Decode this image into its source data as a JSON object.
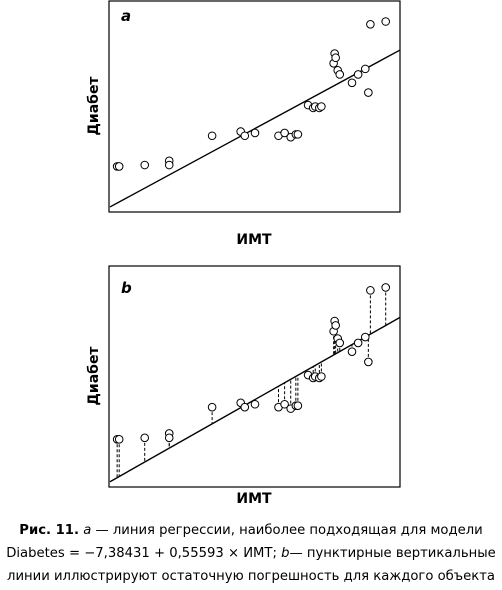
{
  "chart_data": [
    {
      "type": "scatter",
      "panel_label": "a",
      "xlabel": "ИМТ",
      "ylabel": "Диабет",
      "regression_line": true,
      "residual_lines": false,
      "points": [
        {
          "x": 0.3,
          "y": 3.2
        },
        {
          "x": 0.5,
          "y": 3.2
        },
        {
          "x": 3.0,
          "y": 3.3
        },
        {
          "x": 5.4,
          "y": 3.6
        },
        {
          "x": 5.4,
          "y": 3.3
        },
        {
          "x": 9.6,
          "y": 5.4
        },
        {
          "x": 12.4,
          "y": 5.7
        },
        {
          "x": 12.8,
          "y": 5.4
        },
        {
          "x": 13.8,
          "y": 5.6
        },
        {
          "x": 16.1,
          "y": 5.4
        },
        {
          "x": 16.7,
          "y": 5.6
        },
        {
          "x": 17.3,
          "y": 5.3
        },
        {
          "x": 17.8,
          "y": 5.5
        },
        {
          "x": 18.0,
          "y": 5.5
        },
        {
          "x": 19.0,
          "y": 7.6
        },
        {
          "x": 19.5,
          "y": 7.4
        },
        {
          "x": 19.7,
          "y": 7.5
        },
        {
          "x": 20.1,
          "y": 7.4
        },
        {
          "x": 20.3,
          "y": 7.5
        },
        {
          "x": 21.5,
          "y": 10.6
        },
        {
          "x": 21.6,
          "y": 11.3
        },
        {
          "x": 21.7,
          "y": 11.0
        },
        {
          "x": 21.9,
          "y": 10.1
        },
        {
          "x": 22.1,
          "y": 9.8
        },
        {
          "x": 23.3,
          "y": 9.2
        },
        {
          "x": 23.9,
          "y": 9.8
        },
        {
          "x": 24.6,
          "y": 10.2
        },
        {
          "x": 24.9,
          "y": 8.5
        },
        {
          "x": 25.1,
          "y": 13.4
        },
        {
          "x": 26.6,
          "y": 13.6
        }
      ],
      "line": {
        "x1": 0,
        "y1": 0.45,
        "x2": 28,
        "y2": 11.55
      }
    },
    {
      "type": "scatter",
      "panel_label": "b",
      "xlabel": "ИМТ",
      "ylabel": "Диабет",
      "regression_line": true,
      "residual_lines": true,
      "points": [
        {
          "x": 0.3,
          "y": 3.2
        },
        {
          "x": 0.5,
          "y": 3.2
        },
        {
          "x": 3.0,
          "y": 3.3
        },
        {
          "x": 5.4,
          "y": 3.6
        },
        {
          "x": 5.4,
          "y": 3.3
        },
        {
          "x": 9.6,
          "y": 5.4
        },
        {
          "x": 12.4,
          "y": 5.7
        },
        {
          "x": 12.8,
          "y": 5.4
        },
        {
          "x": 13.8,
          "y": 5.6
        },
        {
          "x": 16.1,
          "y": 5.4
        },
        {
          "x": 16.7,
          "y": 5.6
        },
        {
          "x": 17.3,
          "y": 5.3
        },
        {
          "x": 17.8,
          "y": 5.5
        },
        {
          "x": 18.0,
          "y": 5.5
        },
        {
          "x": 19.0,
          "y": 7.6
        },
        {
          "x": 19.5,
          "y": 7.4
        },
        {
          "x": 19.7,
          "y": 7.5
        },
        {
          "x": 20.1,
          "y": 7.4
        },
        {
          "x": 20.3,
          "y": 7.5
        },
        {
          "x": 21.5,
          "y": 10.6
        },
        {
          "x": 21.6,
          "y": 11.3
        },
        {
          "x": 21.7,
          "y": 11.0
        },
        {
          "x": 21.9,
          "y": 10.1
        },
        {
          "x": 22.1,
          "y": 9.8
        },
        {
          "x": 23.3,
          "y": 9.2
        },
        {
          "x": 23.9,
          "y": 9.8
        },
        {
          "x": 24.6,
          "y": 10.2
        },
        {
          "x": 24.9,
          "y": 8.5
        },
        {
          "x": 25.1,
          "y": 13.4
        },
        {
          "x": 26.6,
          "y": 13.6
        }
      ],
      "line": {
        "x1": 0,
        "y1": 0.45,
        "x2": 28,
        "y2": 11.55
      }
    }
  ],
  "caption": {
    "fig_label": "Рис. 11.",
    "line1_a": "a",
    "line1_rest": " — линия регрессии, наиболее подходящая для модели",
    "line2_start": "Diabetes = −7,38431 + 0,55593 × ИМТ; ",
    "line2_b": "b",
    "line2_rest": "— пунктирные вертикальные",
    "line3": "линии иллюстрируют остаточную погрешность для каждого объекта"
  }
}
